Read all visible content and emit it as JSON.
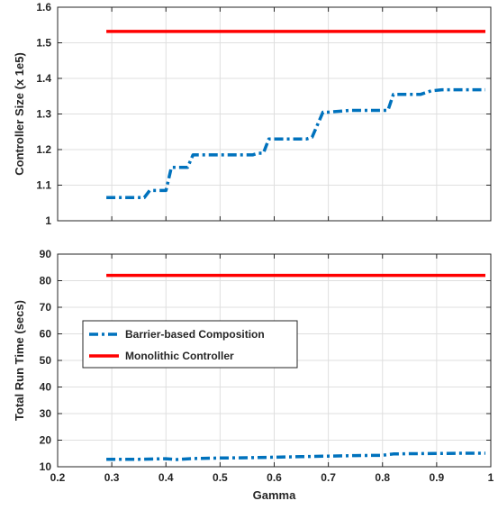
{
  "colors": {
    "barrier": "#0072BD",
    "monolithic": "#FF0000",
    "axis": "#262626",
    "grid": "#dfdfdf"
  },
  "chart_data": [
    {
      "type": "line",
      "ylabel": "Controller Size (x 1e5)",
      "xlabel": "",
      "xlim": [
        0.2,
        1.0
      ],
      "ylim": [
        1.0,
        1.6
      ],
      "xticks": [],
      "yticks": [
        "1",
        "1.1",
        "1.2",
        "1.3",
        "1.4",
        "1.5",
        "1.6"
      ],
      "grid": true,
      "series": [
        {
          "name": "Barrier-based Composition",
          "style": "dash-dot",
          "color": "#0072BD",
          "x": [
            0.29,
            0.36,
            0.37,
            0.4,
            0.41,
            0.44,
            0.45,
            0.52,
            0.56,
            0.57,
            0.58,
            0.59,
            0.66,
            0.67,
            0.69,
            0.7,
            0.74,
            0.8,
            0.81,
            0.82,
            0.87,
            0.88,
            0.89,
            0.91,
            0.99
          ],
          "y": [
            1.065,
            1.065,
            1.085,
            1.085,
            1.15,
            1.15,
            1.185,
            1.185,
            1.185,
            1.19,
            1.19,
            1.23,
            1.23,
            1.235,
            1.305,
            1.305,
            1.31,
            1.31,
            1.31,
            1.355,
            1.355,
            1.36,
            1.365,
            1.368,
            1.368
          ]
        },
        {
          "name": "Monolithic Controller",
          "style": "solid",
          "color": "#FF0000",
          "x": [
            0.29,
            0.99
          ],
          "y": [
            1.532,
            1.532
          ]
        }
      ]
    },
    {
      "type": "line",
      "ylabel": "Total Run Time (secs)",
      "xlabel": "Gamma",
      "xlim": [
        0.2,
        1.0
      ],
      "ylim": [
        10,
        90
      ],
      "xticks": [
        "0.2",
        "0.3",
        "0.4",
        "0.5",
        "0.6",
        "0.7",
        "0.8",
        "0.9",
        "1"
      ],
      "yticks": [
        "10",
        "20",
        "30",
        "40",
        "50",
        "60",
        "70",
        "80",
        "90"
      ],
      "grid": true,
      "legend": {
        "placement": "center-left",
        "entries": [
          "Barrier-based Composition",
          "Monolithic Controller"
        ]
      },
      "series": [
        {
          "name": "Barrier-based Composition",
          "style": "dash-dot",
          "color": "#0072BD",
          "x": [
            0.29,
            0.35,
            0.4,
            0.42,
            0.45,
            0.5,
            0.55,
            0.6,
            0.65,
            0.7,
            0.75,
            0.8,
            0.82,
            0.85,
            0.9,
            0.95,
            0.99
          ],
          "y": [
            12.8,
            12.8,
            13.0,
            12.7,
            13.1,
            13.3,
            13.4,
            13.6,
            13.8,
            14.0,
            14.2,
            14.3,
            14.8,
            14.9,
            15.0,
            15.1,
            15.1
          ]
        },
        {
          "name": "Monolithic Controller",
          "style": "solid",
          "color": "#FF0000",
          "x": [
            0.29,
            0.99
          ],
          "y": [
            82,
            82
          ]
        }
      ]
    }
  ]
}
